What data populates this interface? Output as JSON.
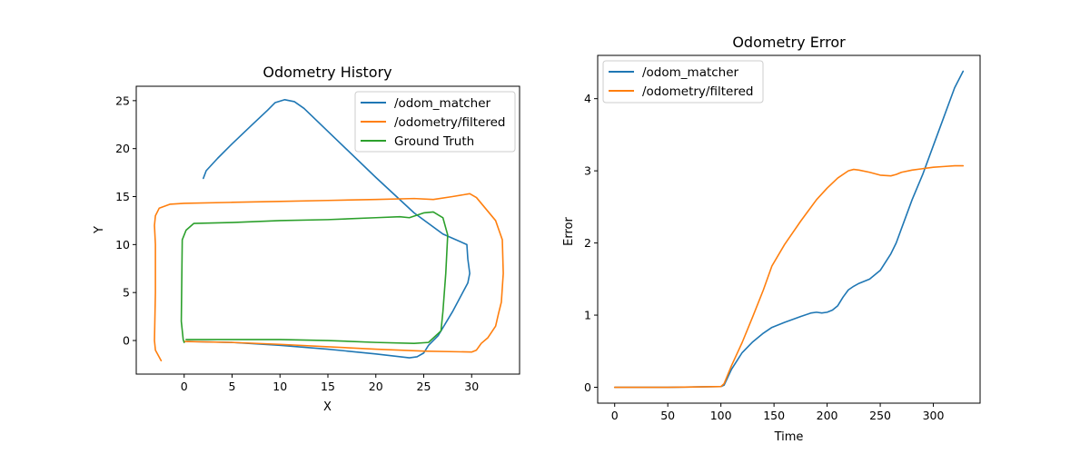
{
  "chart_data": [
    {
      "type": "line",
      "title": "Odometry History",
      "xlabel": "X",
      "ylabel": "Y",
      "xlim": [
        -5,
        35
      ],
      "ylim": [
        -3.5,
        26.5
      ],
      "xticks": [
        0,
        5,
        10,
        15,
        20,
        25,
        30
      ],
      "yticks": [
        0,
        5,
        10,
        15,
        20,
        25
      ],
      "legend_position": "upper right",
      "series": [
        {
          "name": "/odom_matcher",
          "color": "#1f77b4",
          "x": [
            2.0,
            2.3,
            3.5,
            5.0,
            7.0,
            8.7,
            9.5,
            10.5,
            11.5,
            12.5,
            15.0,
            20.0,
            24.0,
            27.0,
            29.5,
            29.6,
            29.8,
            29.6,
            28.0,
            26.5,
            25.5,
            25.0,
            24.3,
            23.5,
            20.0,
            15.0,
            10.0,
            5.0,
            0.5,
            0.3
          ],
          "y": [
            16.9,
            17.7,
            19.0,
            20.5,
            22.4,
            24.0,
            24.8,
            25.1,
            24.9,
            24.2,
            21.8,
            17.0,
            13.3,
            11.1,
            10.0,
            8.5,
            7.0,
            6.0,
            3.0,
            0.5,
            -0.5,
            -1.3,
            -1.7,
            -1.8,
            -1.4,
            -0.9,
            -0.5,
            -0.2,
            -0.1,
            -0.1
          ]
        },
        {
          "name": "/odometry/filtered",
          "color": "#ff7f0e",
          "x": [
            -2.4,
            -3.0,
            -3.1,
            -3.0,
            -3.0,
            -3.1,
            -3.0,
            -2.6,
            -1.5,
            0.0,
            5.0,
            10.0,
            15.0,
            20.0,
            24.0,
            26.0,
            28.0,
            29.8,
            30.5,
            32.5,
            33.2,
            33.3,
            33.1,
            32.8,
            32.5,
            31.7,
            31.0,
            30.5,
            30.0,
            25.0,
            20.0,
            10.0,
            5.0,
            0.0
          ],
          "y": [
            -2.1,
            -1.0,
            0.0,
            5.0,
            10.0,
            12.0,
            13.0,
            13.8,
            14.2,
            14.3,
            14.4,
            14.5,
            14.6,
            14.7,
            14.8,
            14.7,
            15.0,
            15.3,
            14.9,
            12.5,
            10.5,
            7.0,
            4.0,
            2.8,
            1.5,
            0.3,
            -0.3,
            -1.0,
            -1.2,
            -1.1,
            -0.9,
            -0.4,
            -0.2,
            -0.1
          ]
        },
        {
          "name": "Ground Truth",
          "color": "#2ca02c",
          "x": [
            0.0,
            -0.1,
            -0.3,
            -0.2,
            0.2,
            1.0,
            5.0,
            10.0,
            15.0,
            20.0,
            22.5,
            23.5,
            25.0,
            26.0,
            27.0,
            27.5,
            27.3,
            27.0,
            26.8,
            25.5,
            24.0,
            20.0,
            15.0,
            10.0,
            5.0,
            1.0,
            0.2
          ],
          "y": [
            -0.2,
            0.1,
            2.0,
            10.5,
            11.5,
            12.2,
            12.3,
            12.5,
            12.6,
            12.8,
            12.9,
            12.8,
            13.3,
            13.4,
            12.8,
            11.0,
            7.0,
            3.0,
            1.0,
            -0.2,
            -0.3,
            -0.2,
            0.0,
            0.1,
            0.1,
            0.1,
            0.1
          ]
        }
      ]
    },
    {
      "type": "line",
      "title": "Odometry Error",
      "xlabel": "Time",
      "ylabel": "Error",
      "xlim": [
        -16,
        344
      ],
      "ylim": [
        -0.22,
        4.6
      ],
      "xticks": [
        0,
        50,
        100,
        150,
        200,
        250,
        300
      ],
      "yticks": [
        0,
        1,
        2,
        3,
        4
      ],
      "legend_position": "upper left",
      "series": [
        {
          "name": "/odom_matcher",
          "color": "#1f77b4",
          "x": [
            0,
            50,
            100,
            103,
            110,
            120,
            130,
            140,
            148,
            160,
            175,
            185,
            190,
            195,
            200,
            205,
            210,
            215,
            220,
            225,
            230,
            240,
            250,
            260,
            265,
            270,
            280,
            290,
            300,
            310,
            320,
            328
          ],
          "y": [
            0.0,
            0.0,
            0.01,
            0.03,
            0.25,
            0.48,
            0.63,
            0.75,
            0.83,
            0.9,
            0.98,
            1.03,
            1.04,
            1.03,
            1.04,
            1.07,
            1.13,
            1.25,
            1.35,
            1.4,
            1.44,
            1.5,
            1.62,
            1.85,
            2.0,
            2.2,
            2.6,
            2.95,
            3.35,
            3.75,
            4.15,
            4.38
          ]
        },
        {
          "name": "/odometry/filtered",
          "color": "#ff7f0e",
          "x": [
            0,
            50,
            100,
            103,
            110,
            120,
            130,
            140,
            148,
            160,
            175,
            190,
            200,
            210,
            220,
            225,
            230,
            240,
            250,
            260,
            265,
            270,
            280,
            290,
            300,
            310,
            320,
            328
          ],
          "y": [
            0.0,
            0.0,
            0.01,
            0.05,
            0.3,
            0.62,
            0.98,
            1.35,
            1.68,
            1.98,
            2.3,
            2.6,
            2.76,
            2.9,
            3.0,
            3.02,
            3.01,
            2.98,
            2.94,
            2.93,
            2.95,
            2.98,
            3.01,
            3.03,
            3.05,
            3.06,
            3.07,
            3.07
          ]
        }
      ]
    }
  ]
}
